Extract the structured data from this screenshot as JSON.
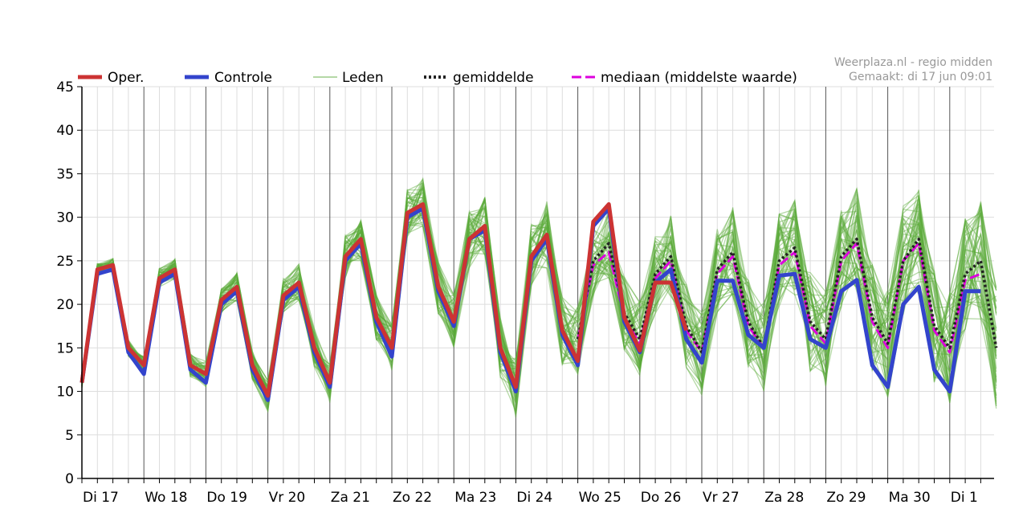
{
  "source": {
    "line1": "Weerplaza.nl - regio midden",
    "line2": "Gemaakt: di 17 jun 09:01"
  },
  "colors": {
    "oper": "#cc3333",
    "controle": "#3344cc",
    "leden": "#5aaa3a",
    "gemiddelde": "#222222",
    "mediaan": "#dd00dd",
    "grid": "#dddddd",
    "day_separator": "#555555"
  },
  "chart_data": {
    "type": "line",
    "ylim": [
      0,
      45
    ],
    "yticks": [
      0,
      5,
      10,
      15,
      20,
      25,
      30,
      35,
      40,
      45
    ],
    "grid": true,
    "legend_position": "top",
    "days": [
      "Di 17",
      "Wo 18",
      "Do 19",
      "Vr 20",
      "Za 21",
      "Zo 22",
      "Ma 23",
      "Di 24",
      "Wo 25",
      "Do 26",
      "Vr 27",
      "Za 28",
      "Zo 29",
      "Ma 30",
      "Di 1"
    ],
    "x_step_label": "index of 6-hourly step starting Di 17 00:00 (4 steps per day)",
    "series": [
      {
        "name": "Oper.",
        "x": [
          0,
          1,
          2,
          3,
          4,
          5,
          6,
          7,
          8,
          9,
          10,
          11,
          12,
          13,
          14,
          15,
          16,
          17,
          18,
          19,
          20,
          21,
          22,
          23,
          24,
          25,
          26,
          27,
          28,
          29,
          30,
          31,
          32,
          33,
          34,
          35,
          36,
          37,
          38,
          39
        ],
        "values": [
          11,
          24,
          24.5,
          15,
          13,
          23,
          24,
          13,
          12,
          20.5,
          22,
          13,
          9.5,
          21,
          22.5,
          15,
          11,
          25.5,
          27.5,
          18.5,
          15,
          30.5,
          31.5,
          22,
          18,
          27.5,
          29,
          15,
          10.5,
          25.5,
          28,
          17,
          13.5,
          29.5,
          31.5,
          18.5,
          14.7,
          22.5,
          22.5,
          17
        ]
      },
      {
        "name": "Controle",
        "x": [
          0,
          1,
          2,
          3,
          4,
          5,
          6,
          7,
          8,
          9,
          10,
          11,
          12,
          13,
          14,
          15,
          16,
          17,
          18,
          19,
          20,
          21,
          22,
          23,
          24,
          25,
          26,
          27,
          28,
          29,
          30,
          31,
          32,
          33,
          34,
          35,
          36,
          37,
          38,
          39,
          40,
          41,
          42,
          43,
          44,
          45,
          46,
          47,
          48,
          49,
          50,
          51,
          52,
          53,
          54,
          55,
          56,
          57,
          58
        ],
        "values": [
          11,
          23.5,
          24,
          14.5,
          12,
          22.5,
          23.5,
          12.5,
          11,
          20,
          21.5,
          12.5,
          9,
          20.5,
          22,
          14.5,
          10.5,
          25,
          27,
          18,
          14,
          30,
          31,
          21.5,
          17.5,
          27.5,
          28.5,
          14.5,
          10,
          25,
          27.5,
          16.5,
          13,
          29,
          31,
          18,
          14.5,
          22.5,
          24,
          16,
          13.3,
          22.7,
          22.7,
          16.5,
          15,
          23.3,
          23.5,
          16,
          15,
          21.5,
          22.8,
          13,
          10.5,
          20,
          22,
          12.5,
          10,
          21.5,
          21.5
        ]
      },
      {
        "name": "gemiddelde",
        "x": [
          32,
          33,
          34,
          35,
          36,
          37,
          38,
          39,
          40,
          41,
          42,
          43,
          44,
          45,
          46,
          47,
          48,
          49,
          50,
          51,
          52,
          53,
          54,
          55,
          56,
          57,
          58,
          59
        ],
        "values": [
          16,
          25,
          27,
          19,
          16,
          23.5,
          25.5,
          17.5,
          14.5,
          24,
          26,
          18,
          15,
          25,
          26.5,
          18,
          16,
          25.5,
          27.5,
          18.5,
          15.5,
          25,
          27.5,
          17.5,
          15,
          23.5,
          25,
          15
        ]
      },
      {
        "name": "mediaan (middelste waarde)",
        "x": [
          32,
          33,
          34,
          35,
          36,
          37,
          38,
          39,
          40,
          41,
          42,
          43,
          44,
          45,
          46,
          47,
          48,
          49,
          50,
          51,
          52,
          53,
          54,
          55,
          56,
          57,
          58
        ],
        "values": [
          16,
          24.5,
          26,
          18.5,
          15.5,
          23,
          25,
          17,
          14.5,
          23.5,
          25.5,
          17.5,
          15,
          24.5,
          26,
          17.5,
          15.5,
          25,
          27,
          18,
          15,
          25,
          27,
          17,
          14.5,
          22.8,
          23.5
        ]
      },
      {
        "name": "Leden",
        "members": 50
      }
    ]
  }
}
